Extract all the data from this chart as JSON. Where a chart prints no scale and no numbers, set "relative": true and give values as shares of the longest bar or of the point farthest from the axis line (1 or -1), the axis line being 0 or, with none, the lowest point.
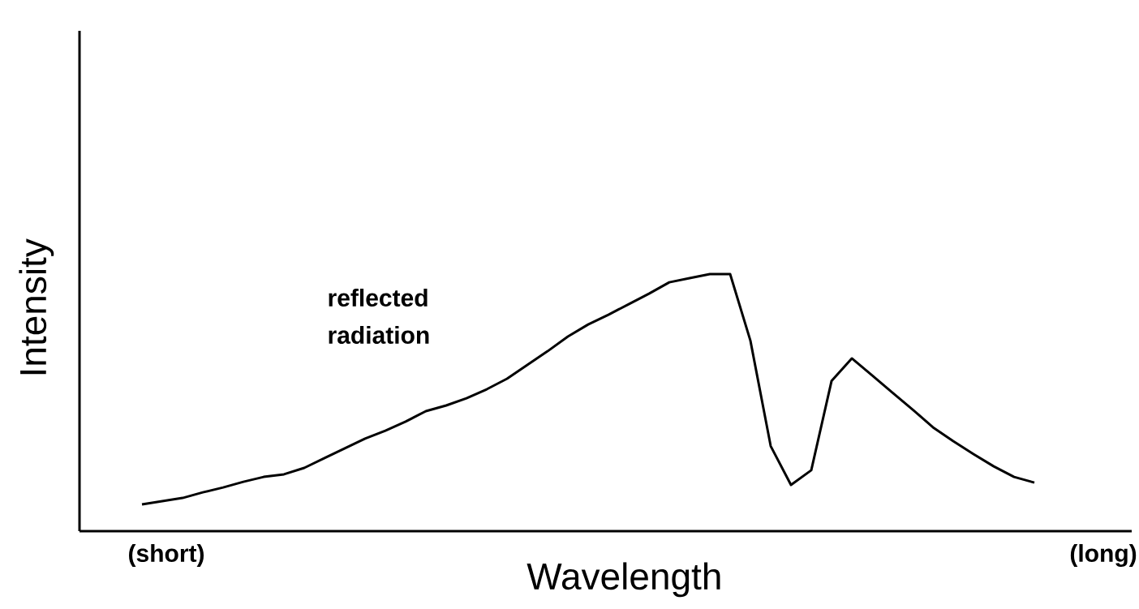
{
  "chart_data": {
    "type": "line",
    "relative": true,
    "xlabel": "Wavelength",
    "ylabel": "Intensity",
    "annotations": [
      "reflected radiation",
      "(short)",
      "(long)"
    ],
    "categories": [
      null,
      null,
      null,
      null,
      null,
      null,
      null,
      null,
      null,
      null,
      null,
      null,
      null,
      null,
      null,
      null,
      null,
      null,
      null,
      null,
      null,
      null,
      null,
      null,
      null,
      null,
      null,
      null,
      null,
      null,
      null,
      null,
      null,
      null,
      null,
      null,
      null,
      null,
      null,
      null,
      null,
      null,
      null,
      null,
      null
    ],
    "series": [
      {
        "color": "#000000",
        "values": [
          0.104,
          0.117,
          0.129,
          0.151,
          0.17,
          0.192,
          0.211,
          0.221,
          0.246,
          0.284,
          0.322,
          0.36,
          0.391,
          0.426,
          0.467,
          0.489,
          0.517,
          0.552,
          0.593,
          0.647,
          0.7,
          0.757,
          0.804,
          0.842,
          0.883,
          0.924,
          0.968,
          0.984,
          1,
          1,
          0.741,
          0.331,
          0.18,
          0.237,
          0.584,
          0.672,
          0.606,
          0.539,
          0.473,
          0.404,
          0.35,
          0.3,
          0.252,
          0.211,
          0.189
        ]
      }
    ],
    "marker": "none",
    "line_style": "solid"
  }
}
